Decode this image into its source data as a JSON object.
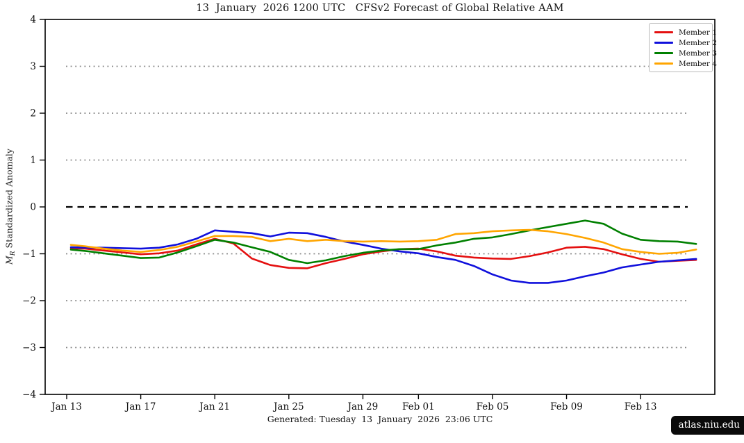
{
  "title": "13  January  2026 1200 UTC   CFSv2 Forecast of Global Relative AAM",
  "caption": "Generated: Tuesday  13  January  2026  23:06 UTC",
  "badge_text": "atlas.niu.edu",
  "y_axis": {
    "label_var": "M",
    "label_sub": "R",
    "label_rest": " Standardized Anomaly",
    "tick_values": [
      4,
      3,
      2,
      1,
      0,
      -1,
      -2,
      -3,
      -4
    ],
    "min": -4,
    "max": 4
  },
  "x_axis": {
    "tick_labels": [
      "Jan 13",
      "Jan 17",
      "Jan 21",
      "Jan 25",
      "Jan 29",
      "Feb 01",
      "Feb 05",
      "Feb 09",
      "Feb 13"
    ],
    "tick_day_index": [
      0,
      4,
      8,
      12,
      16,
      19,
      23,
      27,
      31
    ]
  },
  "legend": {
    "position": "top-right",
    "items": [
      {
        "label": "Member 1",
        "color": "#e41010"
      },
      {
        "label": "Member 2",
        "color": "#1010dc"
      },
      {
        "label": "Member 3",
        "color": "#008000"
      },
      {
        "label": "Member 4",
        "color": "#ffa500"
      }
    ]
  },
  "style_colors": {
    "zero_line": "#000000",
    "grid_dotted": "#8a8a8a",
    "frame": "#000000",
    "badge_bg": "#0a0a0a"
  },
  "chart_data": {
    "type": "line",
    "title": "13 January 2026 1200 UTC CFSv2 Forecast of Global Relative AAM",
    "xlabel": "",
    "ylabel": "M_R Standardized Anomaly",
    "ylim": [
      -4,
      4
    ],
    "grid": "dotted horizontal lines at -3,-2,-1,1,2,3; bold black dashed line at 0",
    "gridline_values": [
      3,
      2,
      1,
      -1,
      -2,
      -3
    ],
    "zero_line_value": 0,
    "legend_position": "upper right",
    "x": [
      "Jan 13",
      "Jan 14",
      "Jan 15",
      "Jan 16",
      "Jan 17",
      "Jan 18",
      "Jan 19",
      "Jan 20",
      "Jan 21",
      "Jan 22",
      "Jan 23",
      "Jan 24",
      "Jan 25",
      "Jan 26",
      "Jan 27",
      "Jan 28",
      "Jan 29",
      "Jan 30",
      "Jan 31",
      "Feb 01",
      "Feb 02",
      "Feb 03",
      "Feb 04",
      "Feb 05",
      "Feb 06",
      "Feb 07",
      "Feb 08",
      "Feb 09",
      "Feb 10",
      "Feb 11",
      "Feb 12",
      "Feb 13",
      "Feb 14",
      "Feb 15",
      "Feb 16"
    ],
    "series": [
      {
        "name": "Member 1",
        "color": "#e41010",
        "values": [
          -0.88,
          -0.89,
          -0.93,
          -0.97,
          -1.01,
          -0.99,
          -0.93,
          -0.8,
          -0.68,
          -0.78,
          -1.1,
          -1.24,
          -1.3,
          -1.31,
          -1.2,
          -1.11,
          -1.01,
          -0.95,
          -0.9,
          -0.89,
          -0.95,
          -1.04,
          -1.08,
          -1.1,
          -1.11,
          -1.05,
          -0.97,
          -0.87,
          -0.85,
          -0.9,
          -1.01,
          -1.11,
          -1.17,
          -1.15,
          -1.13
        ]
      },
      {
        "name": "Member 2",
        "color": "#1010dc",
        "values": [
          -0.86,
          -0.87,
          -0.87,
          -0.88,
          -0.89,
          -0.87,
          -0.8,
          -0.68,
          -0.5,
          -0.53,
          -0.56,
          -0.63,
          -0.55,
          -0.56,
          -0.64,
          -0.74,
          -0.81,
          -0.89,
          -0.95,
          -0.99,
          -1.07,
          -1.13,
          -1.26,
          -1.44,
          -1.57,
          -1.62,
          -1.62,
          -1.57,
          -1.48,
          -1.4,
          -1.29,
          -1.23,
          -1.17,
          -1.14,
          -1.11
        ]
      },
      {
        "name": "Member 3",
        "color": "#008000",
        "values": [
          -0.91,
          -0.94,
          -0.99,
          -1.04,
          -1.09,
          -1.08,
          -0.97,
          -0.84,
          -0.7,
          -0.76,
          -0.86,
          -0.96,
          -1.13,
          -1.2,
          -1.14,
          -1.05,
          -0.98,
          -0.93,
          -0.9,
          -0.9,
          -0.82,
          -0.76,
          -0.68,
          -0.65,
          -0.58,
          -0.5,
          -0.43,
          -0.36,
          -0.29,
          -0.36,
          -0.57,
          -0.7,
          -0.73,
          -0.74,
          -0.79
        ]
      },
      {
        "name": "Member 4",
        "color": "#ffa500",
        "values": [
          -0.81,
          -0.84,
          -0.89,
          -0.93,
          -0.96,
          -0.92,
          -0.85,
          -0.74,
          -0.62,
          -0.62,
          -0.64,
          -0.73,
          -0.68,
          -0.73,
          -0.7,
          -0.73,
          -0.74,
          -0.73,
          -0.74,
          -0.73,
          -0.7,
          -0.58,
          -0.56,
          -0.52,
          -0.5,
          -0.49,
          -0.52,
          -0.58,
          -0.66,
          -0.76,
          -0.9,
          -0.96,
          -1.0,
          -0.98,
          -0.91
        ]
      }
    ]
  }
}
